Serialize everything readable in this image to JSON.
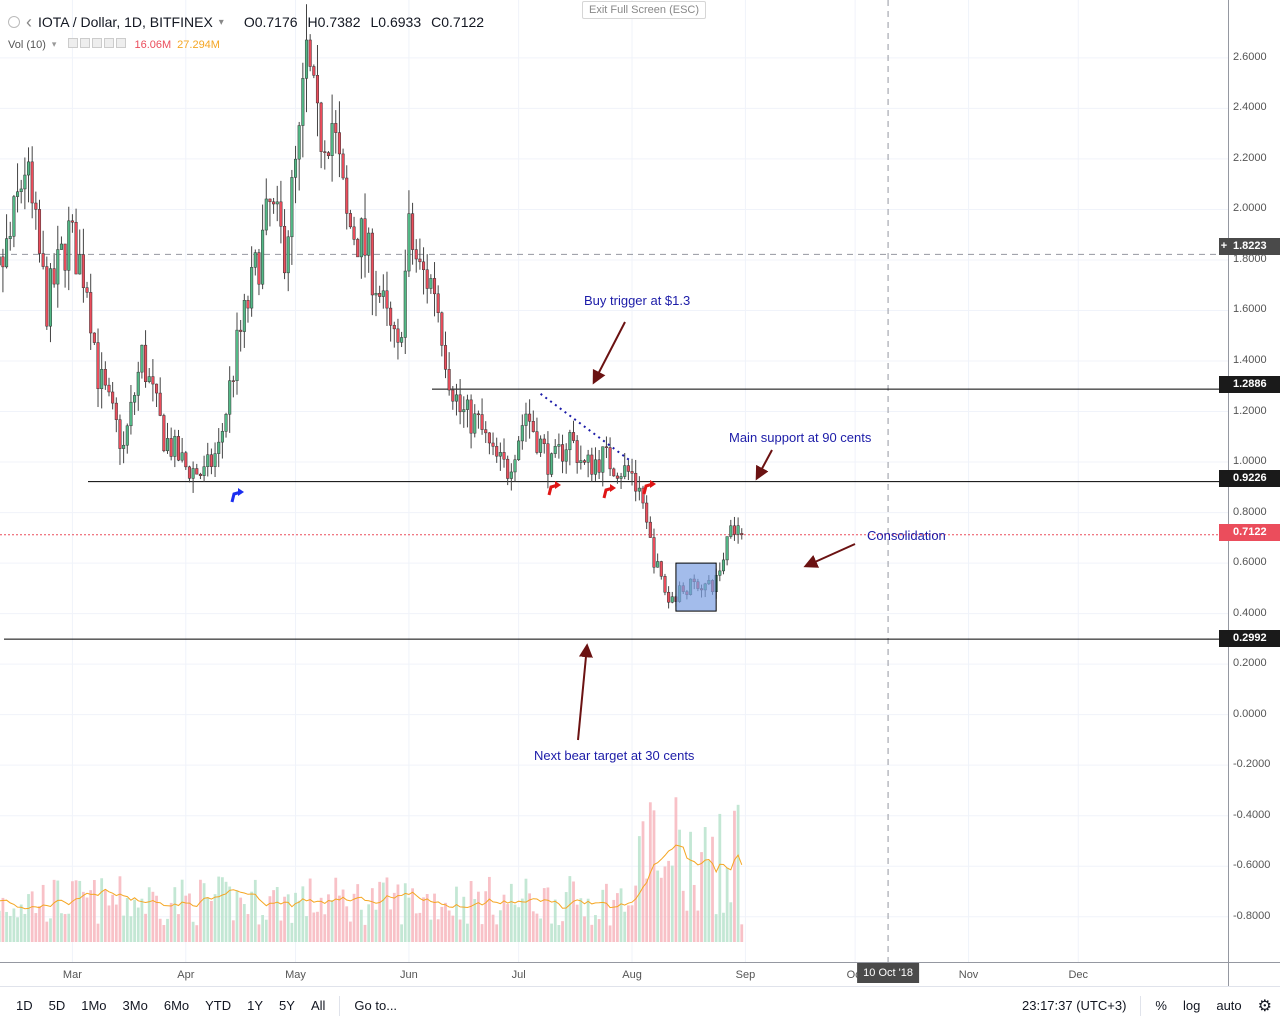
{
  "header": {
    "symbol": "IOTA / Dollar, 1D, BITFINEX",
    "open_label": "O",
    "open": "0.7176",
    "high_label": "H",
    "high": "0.7382",
    "low_label": "L",
    "low": "0.6933",
    "close_label": "C",
    "close": "0.7122",
    "vol_label": "Vol (10)",
    "vol_value": "16.06M",
    "vol_ma": "27.294M",
    "exit_fullscreen": "Exit Full Screen (ESC)"
  },
  "annotations": {
    "buy_trigger": "Buy trigger at $1.3",
    "main_support": "Main support at 90 cents",
    "consolidation": "Consolidation",
    "bear_target": "Next bear target at 30 cents"
  },
  "price_tags": {
    "resistance": "1.8223",
    "buy": "1.2886",
    "support": "0.9226",
    "last": "0.7122",
    "bear": "0.2992"
  },
  "time_axis": {
    "labels": [
      "Mar",
      "Apr",
      "May",
      "Jun",
      "Jul",
      "Aug",
      "Sep",
      "Oct",
      "Nov",
      "Dec"
    ],
    "cursor": "10 Oct '18"
  },
  "bottom_bar": {
    "ranges": [
      "1D",
      "5D",
      "1Mo",
      "3Mo",
      "6Mo",
      "YTD",
      "1Y",
      "5Y",
      "All"
    ],
    "goto": "Go to...",
    "clock": "23:17:37 (UTC+3)",
    "percent": "%",
    "log": "log",
    "auto": "auto"
  },
  "colors": {
    "up": "#53b987",
    "down": "#eb4d5c",
    "annotation": "#1c1ca8",
    "arrow": "#6b1212",
    "box": "#7c9fe3"
  },
  "chart_data": {
    "type": "candlestick",
    "ylim": [
      -0.9,
      2.75
    ],
    "yticks": [
      2.6,
      2.4,
      2.2,
      2.0,
      1.8,
      1.6,
      1.4,
      1.2,
      1.0,
      0.8,
      0.6,
      0.4,
      0.2,
      0.0,
      -0.2,
      -0.4,
      -0.6,
      -0.8
    ],
    "x_start": "2018-02-01",
    "x_end": "2018-12-31",
    "horizontal_levels": [
      1.8223,
      1.2886,
      0.9226,
      0.7122,
      0.2992
    ],
    "trend": [
      [
        "2018-02-01",
        1.98
      ],
      [
        "2018-02-07",
        1.65
      ],
      [
        "2018-02-12",
        1.88
      ],
      [
        "2018-02-16",
        2.18
      ],
      [
        "2018-02-22",
        1.62
      ],
      [
        "2018-02-28",
        1.9
      ],
      [
        "2018-03-05",
        1.72
      ],
      [
        "2018-03-08",
        1.35
      ],
      [
        "2018-03-15",
        1.05
      ],
      [
        "2018-03-20",
        1.42
      ],
      [
        "2018-03-26",
        1.1
      ],
      [
        "2018-04-01",
        0.98
      ],
      [
        "2018-04-06",
        0.95
      ],
      [
        "2018-04-10",
        1.05
      ],
      [
        "2018-04-15",
        1.45
      ],
      [
        "2018-04-20",
        1.75
      ],
      [
        "2018-04-24",
        2.0
      ],
      [
        "2018-04-28",
        1.85
      ],
      [
        "2018-05-02",
        2.25
      ],
      [
        "2018-05-04",
        2.6
      ],
      [
        "2018-05-07",
        2.3
      ],
      [
        "2018-05-11",
        2.35
      ],
      [
        "2018-05-15",
        1.95
      ],
      [
        "2018-05-19",
        1.88
      ],
      [
        "2018-05-23",
        1.72
      ],
      [
        "2018-05-26",
        1.55
      ],
      [
        "2018-05-29",
        1.42
      ],
      [
        "2018-06-01",
        1.9
      ],
      [
        "2018-06-04",
        1.75
      ],
      [
        "2018-06-08",
        1.7
      ],
      [
        "2018-06-12",
        1.35
      ],
      [
        "2018-06-15",
        1.2
      ],
      [
        "2018-06-20",
        1.15
      ],
      [
        "2018-06-24",
        1.02
      ],
      [
        "2018-06-28",
        0.97
      ],
      [
        "2018-07-03",
        1.2
      ],
      [
        "2018-07-06",
        1.1
      ],
      [
        "2018-07-10",
        0.98
      ],
      [
        "2018-07-15",
        1.1
      ],
      [
        "2018-07-19",
        0.98
      ],
      [
        "2018-07-24",
        1.02
      ],
      [
        "2018-07-28",
        0.98
      ],
      [
        "2018-08-01",
        0.95
      ],
      [
        "2018-08-04",
        0.8
      ],
      [
        "2018-08-07",
        0.62
      ],
      [
        "2018-08-11",
        0.45
      ],
      [
        "2018-08-15",
        0.5
      ],
      [
        "2018-08-19",
        0.52
      ],
      [
        "2018-08-23",
        0.5
      ],
      [
        "2018-08-26",
        0.62
      ],
      [
        "2018-08-28",
        0.78
      ],
      [
        "2018-08-31",
        0.71
      ]
    ],
    "volume": {
      "scale_max_millions": 200,
      "latest_millions": 16.06,
      "ma_millions": 27.294
    }
  }
}
